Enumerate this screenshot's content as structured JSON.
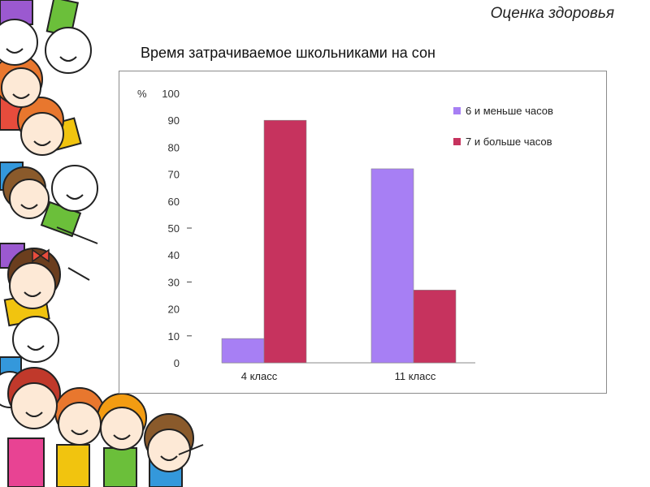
{
  "header": {
    "title": "Оценка здоровья"
  },
  "chart_data": {
    "type": "bar",
    "title": "Время затрачиваемое школьниками на сон",
    "ylabel": "%",
    "ylim": [
      0,
      100
    ],
    "yticks": [
      0,
      10,
      20,
      30,
      40,
      50,
      60,
      70,
      80,
      90,
      100
    ],
    "tick_marks_on": [
      10,
      30,
      50
    ],
    "categories": [
      "4 класс",
      "11 класс"
    ],
    "series": [
      {
        "name": "6 и меньше часов",
        "values": [
          9,
          72
        ],
        "color": "#a77ff4"
      },
      {
        "name": "7 и больше часов",
        "values": [
          90,
          27
        ],
        "color": "#c6335e"
      }
    ],
    "legend_position": "top-right",
    "grid": false
  },
  "decoration": {
    "icon": "cartoon-children-border"
  }
}
